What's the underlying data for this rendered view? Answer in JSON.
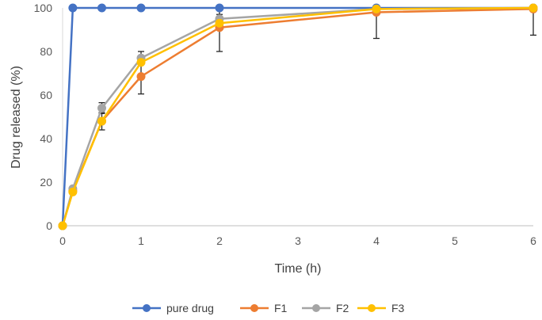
{
  "chart_data": {
    "type": "line",
    "title": "",
    "xlabel": "Time (h)",
    "ylabel": "Drug released (%)",
    "xlim": [
      0,
      6
    ],
    "ylim": [
      0,
      100
    ],
    "xticks": [
      0,
      1,
      2,
      3,
      4,
      5,
      6
    ],
    "yticks": [
      0,
      20,
      40,
      60,
      80,
      100
    ],
    "grid": false,
    "legend_position": "bottom",
    "series": [
      {
        "name": "pure drug",
        "color": "#4472C4",
        "x": [
          0,
          0.13,
          0.5,
          1,
          2,
          4,
          6
        ],
        "y": [
          0,
          100,
          100,
          100,
          100,
          100,
          100
        ],
        "err": [
          0,
          0,
          0,
          0,
          0,
          0,
          0
        ]
      },
      {
        "name": "F1",
        "color": "#ED7D31",
        "x": [
          0,
          0.13,
          0.5,
          1,
          2,
          4,
          6
        ],
        "y": [
          0,
          16,
          48,
          68.5,
          91,
          98,
          99.5
        ],
        "err": [
          0,
          0,
          4,
          8,
          11,
          12,
          12
        ]
      },
      {
        "name": "F2",
        "color": "#A5A5A5",
        "x": [
          0,
          0.13,
          0.5,
          1,
          2,
          4,
          6
        ],
        "y": [
          0,
          17,
          54,
          77,
          95,
          99.5,
          100
        ],
        "err": [
          0,
          0,
          2.5,
          3,
          2,
          0,
          0
        ]
      },
      {
        "name": "F3",
        "color": "#FFC000",
        "x": [
          0,
          0.13,
          0.5,
          1,
          2,
          4,
          6
        ],
        "y": [
          0,
          15.5,
          48,
          75,
          93,
          99.5,
          100
        ],
        "err": [
          0,
          0,
          0,
          0,
          0,
          0,
          0
        ]
      }
    ]
  }
}
